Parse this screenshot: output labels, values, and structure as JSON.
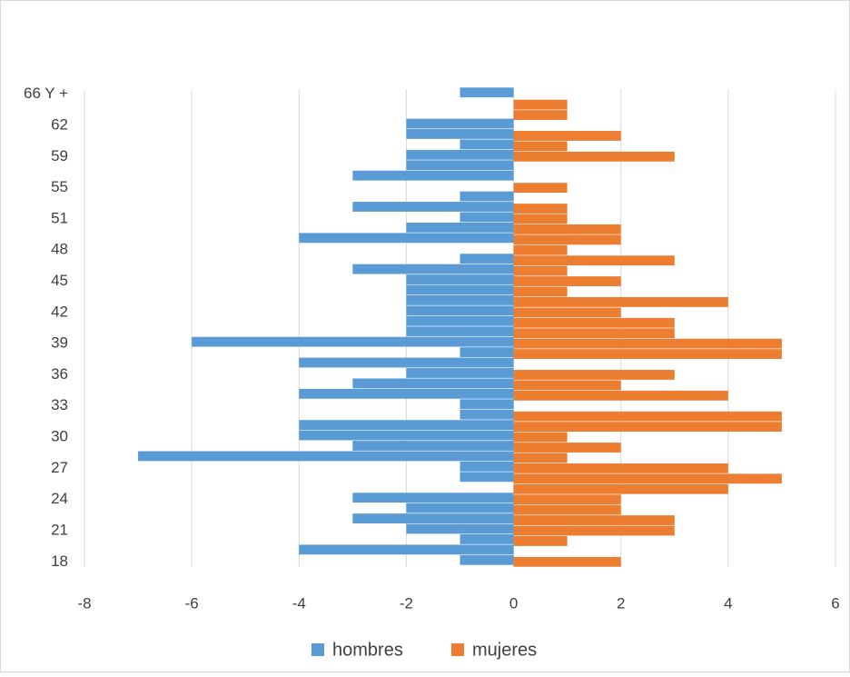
{
  "chart_data": {
    "type": "bar",
    "orientation": "horizontal",
    "categories": [
      "18",
      null,
      null,
      "21",
      null,
      null,
      "24",
      null,
      null,
      "27",
      null,
      null,
      "30",
      null,
      null,
      "33",
      null,
      null,
      "36",
      null,
      null,
      "39",
      null,
      null,
      "42",
      null,
      null,
      "45",
      null,
      null,
      "48",
      null,
      null,
      "51",
      null,
      null,
      "55",
      null,
      null,
      "59",
      null,
      null,
      "62",
      null,
      null,
      "66 Y +"
    ],
    "series": [
      {
        "name": "hombres",
        "color": "#5b9bd5",
        "values": [
          -1,
          -4,
          -1,
          -2,
          -3,
          -2,
          -3,
          0,
          -1,
          -1,
          -7,
          -3,
          -4,
          -4,
          -1,
          -1,
          -4,
          -3,
          -2,
          -4,
          -1,
          -6,
          -2,
          -2,
          -2,
          -2,
          -2,
          -2,
          -3,
          -1,
          0,
          -4,
          -2,
          -1,
          -3,
          -1,
          0,
          -3,
          -2,
          -2,
          -1,
          -2,
          -2,
          0,
          0,
          -1
        ]
      },
      {
        "name": "mujeres",
        "color": "#ed7d31",
        "values": [
          2,
          0,
          1,
          3,
          3,
          2,
          2,
          4,
          5,
          4,
          1,
          2,
          1,
          5,
          5,
          0,
          4,
          2,
          3,
          0,
          5,
          5,
          3,
          3,
          2,
          4,
          1,
          2,
          1,
          3,
          1,
          2,
          2,
          1,
          1,
          0,
          1,
          0,
          0,
          3,
          1,
          2,
          0,
          1,
          1,
          0
        ]
      }
    ],
    "xlim": [
      -8,
      6
    ],
    "xticks": [
      -8,
      -6,
      -4,
      -2,
      0,
      2,
      4,
      6
    ],
    "grid": true,
    "legend": "bottom"
  }
}
